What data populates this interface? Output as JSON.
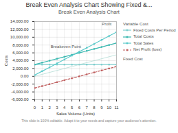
{
  "chart_data": {
    "type": "line",
    "title": "Break Even Analysis Chart Showing Fixed &...",
    "subtitle": "Break Even Analysis Chart",
    "caption": "This slide is 100% editable. Adapt it to your needs and capture your audience's attention.",
    "xlabel": "Sales Volume (Units)",
    "ylabel": "Costs",
    "x": [
      0,
      1,
      2,
      3,
      4,
      5,
      6,
      7,
      8,
      9,
      10,
      11
    ],
    "series": [
      {
        "name": "Fixed Costs Per Period",
        "color": "#7ecece",
        "marker": "square",
        "line_style": "solid",
        "values": [
          3000,
          3000,
          3000,
          3000,
          3000,
          3000,
          3000,
          3000,
          3000,
          3000,
          3000,
          3000
        ]
      },
      {
        "name": "Total Costs",
        "color": "#3ab8b0",
        "marker": "square",
        "line_style": "solid",
        "values": [
          3000,
          3500,
          4000,
          4500,
          5000,
          5500,
          6000,
          6500,
          7000,
          7500,
          8000,
          8500
        ]
      },
      {
        "name": "Total Sales",
        "color": "#5acaca",
        "marker": "square",
        "line_style": "solid",
        "values": [
          300,
          1300,
          2300,
          3300,
          4300,
          5300,
          6300,
          7300,
          8300,
          9300,
          10300,
          11300
        ]
      },
      {
        "name": "Net Profit (loss)",
        "color": "#c06060",
        "marker": "square",
        "line_style": "dashed",
        "values": [
          -3000,
          -2500,
          -2000,
          -1500,
          -1000,
          -500,
          0,
          500,
          1000,
          1500,
          2000,
          2500
        ]
      },
      {
        "color": "#a8d8d0",
        "marker": "none",
        "line_style": "solid",
        "values": [
          0,
          500,
          1000,
          1500,
          2000,
          2500,
          3000,
          3500,
          4000,
          4500,
          5000,
          5500
        ]
      }
    ],
    "xlim": [
      0,
      11
    ],
    "xticks": [
      0,
      1,
      2,
      3,
      4,
      5,
      6,
      7,
      8,
      9,
      10,
      11
    ],
    "ylim": [
      -6000,
      14000
    ],
    "yticks": [
      {
        "value": -6000,
        "label": "-6,000.00"
      },
      {
        "value": -4000,
        "label": "-4,000.00"
      },
      {
        "value": -2000,
        "label": "-2,000.00"
      },
      {
        "value": 0,
        "label": "0.00"
      },
      {
        "value": 2000,
        "label": "2,000.00"
      },
      {
        "value": 4000,
        "label": "4,000.00"
      },
      {
        "value": 6000,
        "label": "6,000.00"
      },
      {
        "value": 8000,
        "label": "8,000.00"
      },
      {
        "value": 10000,
        "label": "10,000.00"
      },
      {
        "value": 12000,
        "label": "12,000.00"
      },
      {
        "value": 14000,
        "label": "14,000.00"
      }
    ],
    "grid": true,
    "legend": "right",
    "legend_title": "Variable Cost",
    "annotations": [
      {
        "text": "Breakeven Point",
        "x": 6.5,
        "y": 6800
      },
      {
        "text": "Profit",
        "x": 10.6,
        "y": 12600
      },
      {
        "text": "Fixed Cost"
      }
    ]
  }
}
